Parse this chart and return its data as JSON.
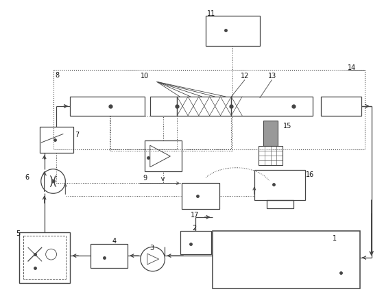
{
  "bg_color": "#ffffff",
  "line_color": "#444444",
  "figsize": [
    5.6,
    4.48
  ],
  "dpi": 100
}
